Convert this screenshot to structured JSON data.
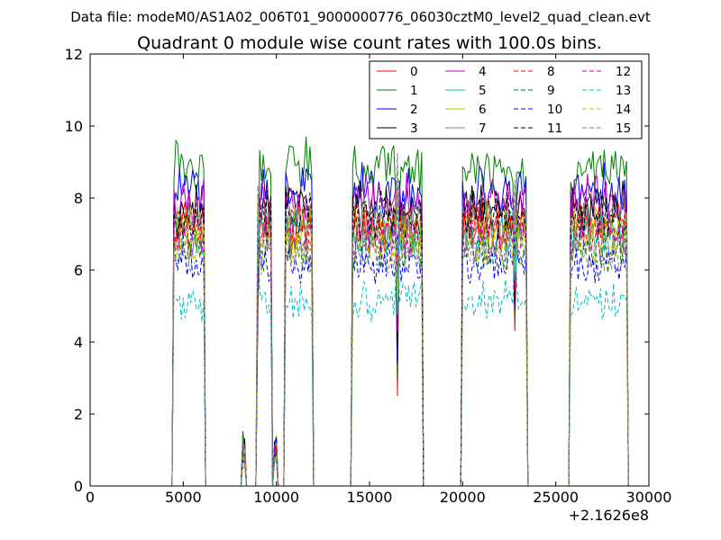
{
  "suptitle": "Data file: modeM0/AS1A02_006T01_9000000776_06030cztM0_level2_quad_clean.evt",
  "chart_data": {
    "type": "line",
    "title": "Quadrant 0 module wise count rates with 100.0s bins.",
    "xlabel": "",
    "ylabel": "",
    "xlim": [
      0,
      30000
    ],
    "ylim": [
      0,
      12
    ],
    "x_offset_label": "+2.1626e8",
    "x_ticks": [
      0,
      5000,
      10000,
      15000,
      20000,
      25000,
      30000
    ],
    "x_tick_labels": [
      "0",
      "5000",
      "10000",
      "15000",
      "20000",
      "25000",
      "30000"
    ],
    "y_ticks": [
      0,
      2,
      4,
      6,
      8,
      10,
      12
    ],
    "y_tick_labels": [
      "0",
      "2",
      "4",
      "6",
      "8",
      "10",
      "12"
    ],
    "legend_position": "top-right",
    "legend_columns": 4,
    "bin_width": 100,
    "segments": [
      {
        "start": 4400,
        "end": 6200
      },
      {
        "start": 8100,
        "end": 8400
      },
      {
        "start": 8900,
        "end": 9800
      },
      {
        "start": 9800,
        "end": 10100
      },
      {
        "start": 10400,
        "end": 12000
      },
      {
        "start": 14000,
        "end": 17900
      },
      {
        "start": 19900,
        "end": 23500
      },
      {
        "start": 25700,
        "end": 28900
      }
    ],
    "series": [
      {
        "name": "0",
        "color": "#ff0000",
        "dash": "solid",
        "level": 7.3
      },
      {
        "name": "1",
        "color": "#008000",
        "dash": "solid",
        "level": 8.8
      },
      {
        "name": "2",
        "color": "#0000ff",
        "dash": "solid",
        "level": 8.2
      },
      {
        "name": "3",
        "color": "#000000",
        "dash": "solid",
        "level": 7.7
      },
      {
        "name": "4",
        "color": "#bf00bf",
        "dash": "solid",
        "level": 7.9
      },
      {
        "name": "5",
        "color": "#00bfbf",
        "dash": "solid",
        "level": 7.0
      },
      {
        "name": "6",
        "color": "#bfbf00",
        "dash": "solid",
        "level": 7.2
      },
      {
        "name": "7",
        "color": "#808080",
        "dash": "solid",
        "level": 7.4
      },
      {
        "name": "8",
        "color": "#ff0000",
        "dash": "dashed",
        "level": 7.1
      },
      {
        "name": "9",
        "color": "#008000",
        "dash": "dashed",
        "level": 6.6
      },
      {
        "name": "10",
        "color": "#0000ff",
        "dash": "dashed",
        "level": 6.2
      },
      {
        "name": "11",
        "color": "#000000",
        "dash": "dashed",
        "level": 7.5
      },
      {
        "name": "12",
        "color": "#bf00bf",
        "dash": "dashed",
        "level": 6.9
      },
      {
        "name": "13",
        "color": "#00bfbf",
        "dash": "dashed",
        "level": 5.1
      },
      {
        "name": "14",
        "color": "#bfbf00",
        "dash": "dashed",
        "level": 6.7
      },
      {
        "name": "15",
        "color": "#808080",
        "dash": "dashed",
        "level": 6.5
      }
    ]
  }
}
